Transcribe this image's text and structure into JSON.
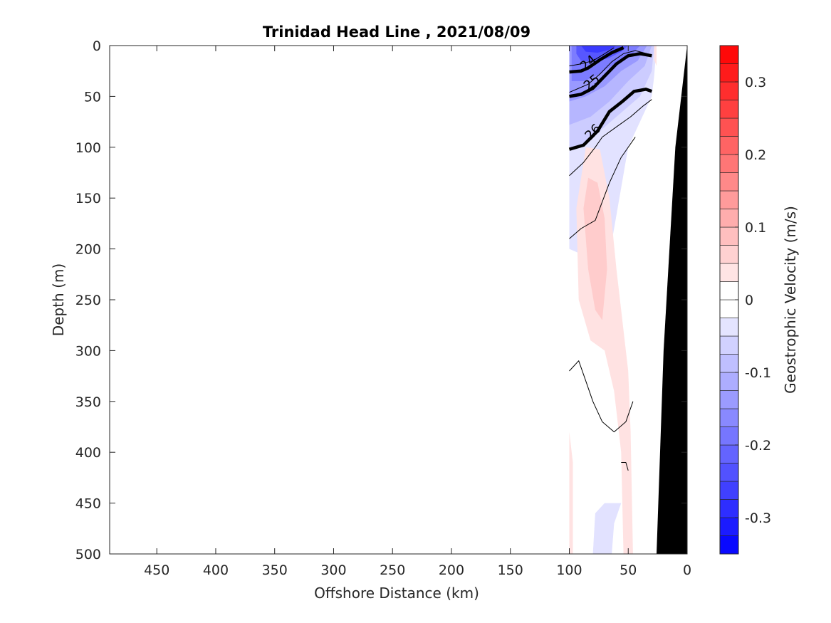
{
  "chart_data": {
    "type": "contour",
    "title": "Trinidad Head Line , 2021/08/09",
    "xlabel": "Offshore Distance (km)",
    "ylabel": "Depth (m)",
    "xlim": [
      490,
      0
    ],
    "ylim": [
      0,
      500
    ],
    "x_reversed": true,
    "y_reversed": true,
    "x_ticks": [
      450,
      400,
      350,
      300,
      250,
      200,
      150,
      100,
      50,
      0
    ],
    "y_ticks": [
      0,
      50,
      100,
      150,
      200,
      250,
      300,
      350,
      400,
      450,
      500
    ],
    "colorbar": {
      "label": "Geostrophic Velocity (m/s)",
      "range": [
        -0.35,
        0.35
      ],
      "step": 0.025,
      "ticks": [
        -0.3,
        -0.2,
        -0.1,
        0,
        0.1,
        0.2,
        0.3
      ],
      "tick_labels": [
        "-0.3",
        "-0.2",
        "-0.1",
        "0",
        "0.1",
        "0.2",
        "0.3"
      ],
      "negative_color": "#0000ff",
      "positive_color": "#ff0000",
      "zero_color": "#ffffff"
    },
    "velocity_regions": [
      {
        "value": -0.04,
        "points": [
          [
            100,
            0
          ],
          [
            26,
            0
          ],
          [
            28,
            30
          ],
          [
            30,
            50
          ],
          [
            50,
            100
          ],
          [
            62,
            180
          ],
          [
            70,
            230
          ],
          [
            80,
            210
          ],
          [
            100,
            200
          ]
        ]
      },
      {
        "value": -0.04,
        "points": [
          [
            56,
            450
          ],
          [
            62,
            470
          ],
          [
            64,
            500
          ],
          [
            80,
            500
          ],
          [
            78,
            460
          ],
          [
            70,
            450
          ]
        ]
      },
      {
        "value": -0.04,
        "points": [
          [
            58,
            70
          ],
          [
            52,
            110
          ],
          [
            48,
            90
          ],
          [
            46,
            60
          ]
        ]
      },
      {
        "value": -0.07,
        "points": [
          [
            100,
            0
          ],
          [
            28,
            0
          ],
          [
            30,
            25
          ],
          [
            40,
            50
          ],
          [
            60,
            70
          ],
          [
            80,
            90
          ],
          [
            90,
            100
          ],
          [
            100,
            100
          ]
        ]
      },
      {
        "value": -0.1,
        "points": [
          [
            100,
            0
          ],
          [
            30,
            0
          ],
          [
            36,
            20
          ],
          [
            50,
            35
          ],
          [
            66,
            55
          ],
          [
            82,
            70
          ],
          [
            100,
            78
          ]
        ]
      },
      {
        "value": -0.14,
        "points": [
          [
            100,
            0
          ],
          [
            34,
            0
          ],
          [
            42,
            15
          ],
          [
            56,
            25
          ],
          [
            70,
            40
          ],
          [
            86,
            50
          ],
          [
            100,
            55
          ]
        ]
      },
      {
        "value": -0.18,
        "points": [
          [
            98,
            0
          ],
          [
            40,
            0
          ],
          [
            48,
            10
          ],
          [
            62,
            18
          ],
          [
            74,
            28
          ],
          [
            88,
            35
          ],
          [
            98,
            35
          ]
        ]
      },
      {
        "value": -0.23,
        "points": [
          [
            94,
            0
          ],
          [
            50,
            0
          ],
          [
            56,
            6
          ],
          [
            66,
            12
          ],
          [
            78,
            16
          ],
          [
            90,
            15
          ],
          [
            94,
            8
          ]
        ]
      },
      {
        "value": -0.27,
        "points": [
          [
            90,
            0
          ],
          [
            60,
            0
          ],
          [
            66,
            4
          ],
          [
            76,
            7
          ],
          [
            86,
            6
          ]
        ]
      },
      {
        "value": 0.04,
        "points": [
          [
            28,
            0
          ],
          [
            26,
            0
          ],
          [
            26,
            20
          ],
          [
            28,
            14
          ]
        ]
      },
      {
        "value": 0.04,
        "points": [
          [
            86,
            100
          ],
          [
            74,
            102
          ],
          [
            66,
            150
          ],
          [
            60,
            220
          ],
          [
            50,
            320
          ],
          [
            48,
            380
          ],
          [
            46,
            500
          ],
          [
            54,
            500
          ],
          [
            56,
            400
          ],
          [
            62,
            340
          ],
          [
            70,
            300
          ],
          [
            82,
            290
          ],
          [
            92,
            250
          ],
          [
            94,
            160
          ]
        ]
      },
      {
        "value": 0.04,
        "points": [
          [
            100,
            380
          ],
          [
            97,
            410
          ],
          [
            97,
            500
          ],
          [
            100,
            500
          ]
        ]
      },
      {
        "value": 0.07,
        "points": [
          [
            84,
            130
          ],
          [
            76,
            135
          ],
          [
            70,
            170
          ],
          [
            68,
            220
          ],
          [
            72,
            270
          ],
          [
            78,
            260
          ],
          [
            84,
            220
          ],
          [
            88,
            160
          ]
        ]
      }
    ],
    "isopycnals": [
      {
        "value": 24,
        "label": "24",
        "label_pos": [
          84,
          17
        ],
        "label_angle": -40,
        "bold": false,
        "points": [
          [
            100,
            20
          ],
          [
            90,
            18
          ],
          [
            80,
            15
          ],
          [
            70,
            8
          ],
          [
            62,
            2
          ]
        ]
      },
      {
        "value": 24.5,
        "label": "",
        "bold": true,
        "points": [
          [
            100,
            26
          ],
          [
            90,
            25
          ],
          [
            84,
            22
          ],
          [
            74,
            14
          ],
          [
            64,
            7
          ],
          [
            54,
            2
          ]
        ]
      },
      {
        "value": 25,
        "label": "25",
        "label_pos": [
          81,
          36
        ],
        "label_angle": -40,
        "bold": false,
        "points": [
          [
            100,
            46
          ],
          [
            92,
            42
          ],
          [
            84,
            38
          ],
          [
            74,
            28
          ],
          [
            64,
            16
          ],
          [
            54,
            8
          ],
          [
            44,
            5
          ],
          [
            34,
            8
          ]
        ]
      },
      {
        "value": 25.5,
        "label": "",
        "bold": true,
        "points": [
          [
            100,
            50
          ],
          [
            90,
            48
          ],
          [
            80,
            42
          ],
          [
            70,
            30
          ],
          [
            60,
            18
          ],
          [
            50,
            10
          ],
          [
            40,
            8
          ],
          [
            30,
            10
          ]
        ]
      },
      {
        "value": 26,
        "label": "26",
        "label_pos": [
          80,
          85
        ],
        "label_angle": -45,
        "bold": true,
        "points": [
          [
            100,
            102
          ],
          [
            88,
            98
          ],
          [
            76,
            84
          ],
          [
            66,
            65
          ],
          [
            55,
            55
          ],
          [
            45,
            45
          ],
          [
            35,
            43
          ],
          [
            30,
            45
          ]
        ]
      },
      {
        "value": 26.5,
        "label": "",
        "bold": false,
        "points": [
          [
            100,
            128
          ],
          [
            88,
            115
          ],
          [
            78,
            100
          ],
          [
            72,
            90
          ],
          [
            60,
            80
          ],
          [
            48,
            70
          ],
          [
            38,
            60
          ],
          [
            30,
            53
          ]
        ]
      },
      {
        "value": 26.8,
        "label": "",
        "bold": false,
        "points": [
          [
            100,
            190
          ],
          [
            90,
            180
          ],
          [
            78,
            172
          ],
          [
            66,
            135
          ],
          [
            56,
            110
          ],
          [
            44,
            90
          ]
        ]
      },
      {
        "value": 27,
        "label": "",
        "bold": false,
        "points": [
          [
            100,
            320
          ],
          [
            92,
            310
          ],
          [
            86,
            330
          ],
          [
            80,
            350
          ],
          [
            72,
            370
          ],
          [
            62,
            380
          ],
          [
            52,
            370
          ],
          [
            46,
            350
          ]
        ]
      },
      {
        "value": 27.2,
        "label": "",
        "bold": false,
        "points": [
          [
            56,
            410
          ],
          [
            52,
            410
          ],
          [
            50,
            418
          ]
        ]
      }
    ],
    "bathymetry": [
      [
        26,
        500
      ],
      [
        20,
        300
      ],
      [
        10,
        100
      ],
      [
        0,
        0
      ],
      [
        0,
        500
      ]
    ],
    "bathymetry_color": "#000000",
    "contour_color": "#000000"
  }
}
